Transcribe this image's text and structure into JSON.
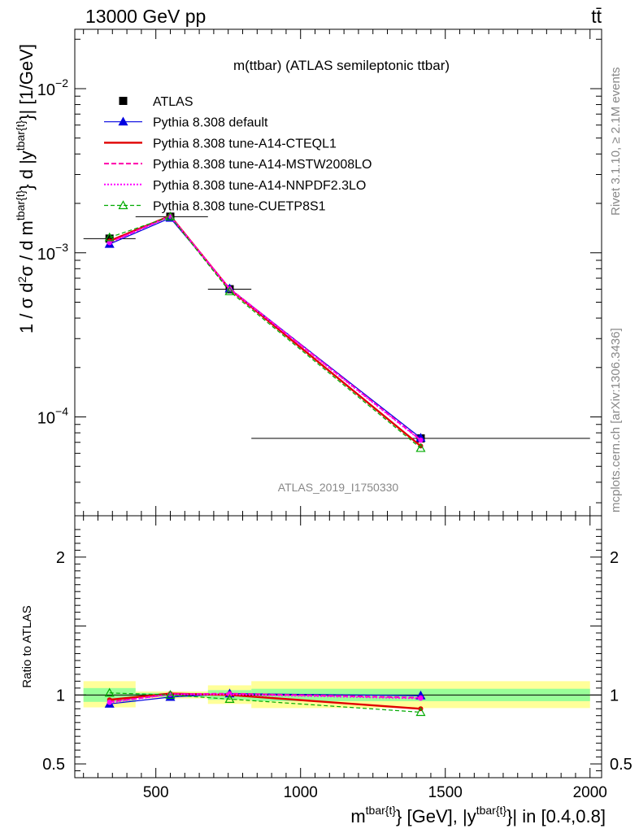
{
  "header": {
    "left": "13000 GeV pp",
    "right": "tt̄"
  },
  "side_labels": {
    "rivet": "Rivet 3.1.10, ≥ 2.1M events",
    "mcplots": "mcplots.cern.ch [arXiv:1306.3436]"
  },
  "chart_data": [
    {
      "type": "line",
      "panel": "main",
      "title": "m(ttbar) (ATLAS semileptonic ttbar)",
      "watermark": "ATLAS_2019_I1750330",
      "ylabel": "1 / σ d²σ / d m^{tbar{t}} d |y^{tbar{t}}| [1/GeV]",
      "yscale": "log",
      "ylim": [
        2.5e-05,
        0.023
      ],
      "xlim": [
        220,
        2040
      ],
      "yticks": [
        {
          "value": 0.0001,
          "label": "10",
          "exp": "−4"
        },
        {
          "value": 0.001,
          "label": "10",
          "exp": "−3"
        },
        {
          "value": 0.01,
          "label": "10",
          "exp": "−2"
        }
      ],
      "legend_position": "top-left",
      "data_series": {
        "name": "ATLAS",
        "x": [
          340,
          550,
          755,
          1415
        ],
        "y": [
          0.00122,
          0.00166,
          0.0006,
          7.4e-05
        ],
        "bins": [
          [
            250,
            430
          ],
          [
            430,
            680
          ],
          [
            680,
            830
          ],
          [
            830,
            2000
          ]
        ]
      },
      "series": [
        {
          "name": "Pythia 8.308 default",
          "color": "#0000e0",
          "style": "solid",
          "marker": "triangle-filled",
          "x": [
            340,
            550,
            755,
            1415
          ],
          "y": [
            0.00113,
            0.00163,
            0.000605,
            7.45e-05
          ]
        },
        {
          "name": "Pythia 8.308 tune-A14-CTEQL1",
          "color": "#e00000",
          "style": "solid-thick",
          "marker": "none",
          "x": [
            340,
            550,
            755,
            1415
          ],
          "y": [
            0.00118,
            0.00168,
            0.0006,
            6.65e-05
          ]
        },
        {
          "name": "Pythia 8.308 tune-A14-MSTW2008LO",
          "color": "#ff00aa",
          "style": "dashed",
          "marker": "none",
          "x": [
            340,
            550,
            755,
            1415
          ],
          "y": [
            0.00116,
            0.00167,
            0.000605,
            7.25e-05
          ]
        },
        {
          "name": "Pythia 8.308 tune-A14-NNPDF2.3LO",
          "color": "#ff00ff",
          "style": "dotted",
          "marker": "none",
          "x": [
            340,
            550,
            755,
            1415
          ],
          "y": [
            0.00115,
            0.00167,
            0.0006,
            7.2e-05
          ]
        },
        {
          "name": "Pythia 8.308 tune-CUETP8S1",
          "color": "#00aa00",
          "style": "dashed-thin",
          "marker": "triangle-open",
          "x": [
            340,
            550,
            755,
            1415
          ],
          "y": [
            0.00124,
            0.00166,
            0.000582,
            6.45e-05
          ]
        }
      ]
    },
    {
      "type": "line",
      "panel": "ratio",
      "ylabel": "Ratio to ATLAS",
      "xlabel": "m^{tbar{t}} [GeV], |y^{tbar{t}}| in [0.4,0.8]",
      "ylim": [
        0.4,
        2.3
      ],
      "xlim": [
        220,
        2040
      ],
      "yticks": [
        {
          "value": 0.5,
          "label": "0.5"
        },
        {
          "value": 1,
          "label": "1"
        },
        {
          "value": 2,
          "label": "2"
        }
      ],
      "xticks": [
        {
          "value": 500,
          "label": "500"
        },
        {
          "value": 1000,
          "label": "1000"
        },
        {
          "value": 1500,
          "label": "1500"
        },
        {
          "value": 2000,
          "label": "2000"
        }
      ],
      "bands": [
        {
          "x0": 250,
          "x1": 430,
          "inner": [
            0.95,
            1.05
          ],
          "outer": [
            0.91,
            1.1
          ]
        },
        {
          "x0": 430,
          "x1": 680,
          "inner": [
            0.985,
            1.015
          ],
          "outer": [
            0.975,
            1.025
          ]
        },
        {
          "x0": 680,
          "x1": 830,
          "inner": [
            0.965,
            1.035
          ],
          "outer": [
            0.935,
            1.07
          ]
        },
        {
          "x0": 830,
          "x1": 2000,
          "inner": [
            0.955,
            1.045
          ],
          "outer": [
            0.905,
            1.1
          ]
        }
      ],
      "series": [
        {
          "name": "Pythia 8.308 default",
          "x": [
            340,
            550,
            755,
            1415
          ],
          "y": [
            0.935,
            0.985,
            1.01,
            0.995
          ]
        },
        {
          "name": "Pythia 8.308 tune-A14-CTEQL1",
          "x": [
            340,
            550,
            755,
            1415
          ],
          "y": [
            0.965,
            1.01,
            1.0,
            0.9
          ]
        },
        {
          "name": "Pythia 8.308 tune-A14-MSTW2008LO",
          "x": [
            340,
            550,
            755,
            1415
          ],
          "y": [
            0.95,
            1.005,
            1.01,
            0.98
          ]
        },
        {
          "name": "Pythia 8.308 tune-A14-NNPDF2.3LO",
          "x": [
            340,
            550,
            755,
            1415
          ],
          "y": [
            0.945,
            1.005,
            1.005,
            0.975
          ]
        },
        {
          "name": "Pythia 8.308 tune-CUETP8S1",
          "x": [
            340,
            550,
            755,
            1415
          ],
          "y": [
            1.015,
            1.0,
            0.97,
            0.875
          ]
        }
      ]
    }
  ]
}
